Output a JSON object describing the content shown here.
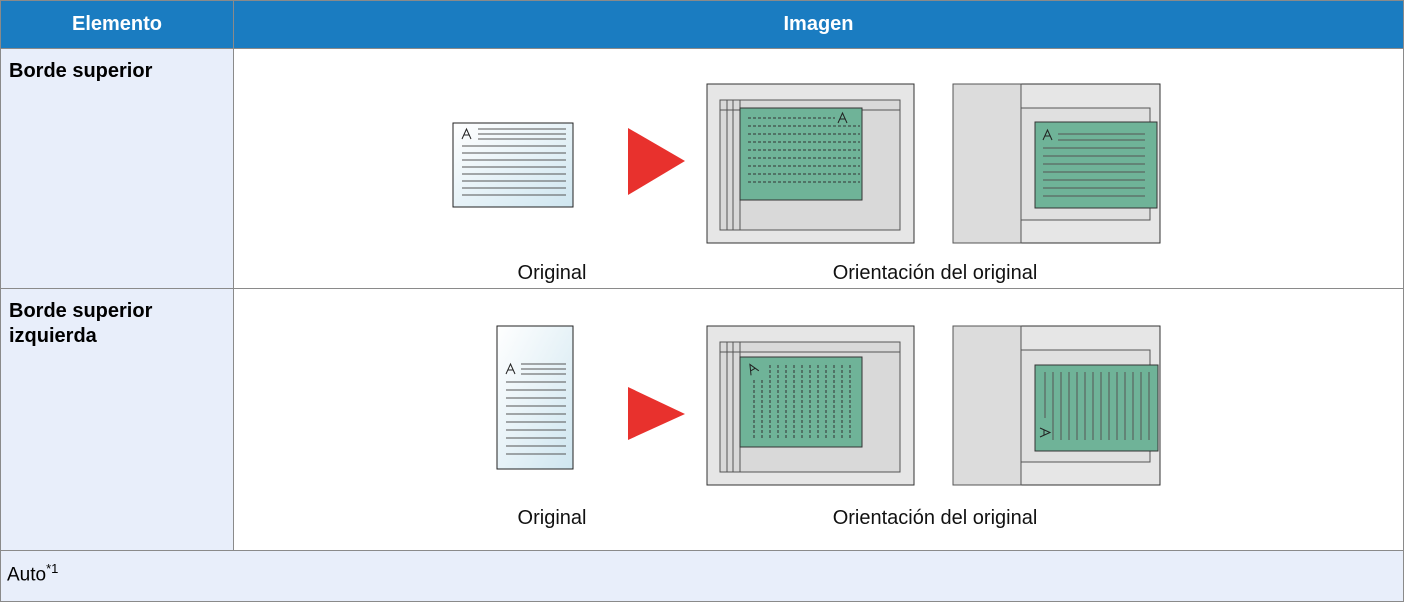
{
  "header": {
    "cells": [
      "Elemento",
      "Imagen"
    ]
  },
  "table": {
    "rows": [
      {
        "label": "Borde superior",
        "captions": [
          "Original",
          "Orientación del original"
        ]
      },
      {
        "label": "Borde superior izquierda",
        "captions": [
          "Original",
          "Orientación del original"
        ]
      }
    ]
  },
  "footer": {
    "text": "Auto",
    "note": "*1"
  }
}
